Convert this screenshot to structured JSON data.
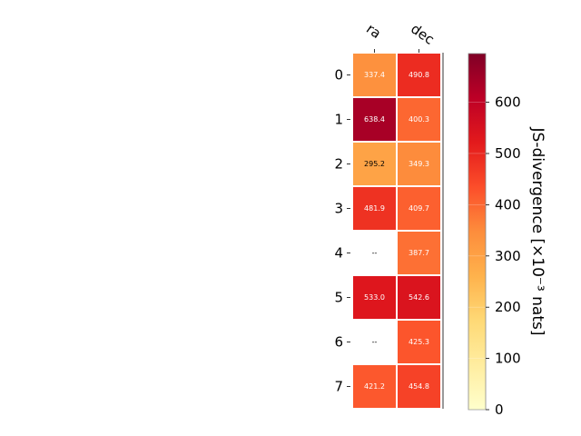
{
  "chart_data": {
    "type": "heatmap",
    "columns": [
      "ra",
      "dec"
    ],
    "rows": [
      "0",
      "1",
      "2",
      "3",
      "4",
      "5",
      "6",
      "7"
    ],
    "values": [
      [
        337.4,
        490.8
      ],
      [
        638.4,
        400.3
      ],
      [
        295.2,
        349.3
      ],
      [
        481.9,
        409.7
      ],
      [
        null,
        387.7
      ],
      [
        533.0,
        542.6
      ],
      [
        null,
        425.3
      ],
      [
        421.2,
        454.8
      ]
    ],
    "cell_labels": [
      [
        "337.4",
        "490.8"
      ],
      [
        "638.4",
        "400.3"
      ],
      [
        "295.2",
        "349.3"
      ],
      [
        "481.9",
        "409.7"
      ],
      [
        "--",
        "387.7"
      ],
      [
        "533.0",
        "542.6"
      ],
      [
        "--",
        "425.3"
      ],
      [
        "421.2",
        "454.8"
      ]
    ],
    "colorbar": {
      "label": "JS-divergence [×10⁻³ nats]",
      "ticks": [
        "0",
        "100",
        "200",
        "300",
        "400",
        "500",
        "600"
      ],
      "tick_values": [
        0,
        100,
        200,
        300,
        400,
        500,
        600
      ],
      "range": [
        0,
        695
      ],
      "colormap": "YlOrRd"
    }
  }
}
